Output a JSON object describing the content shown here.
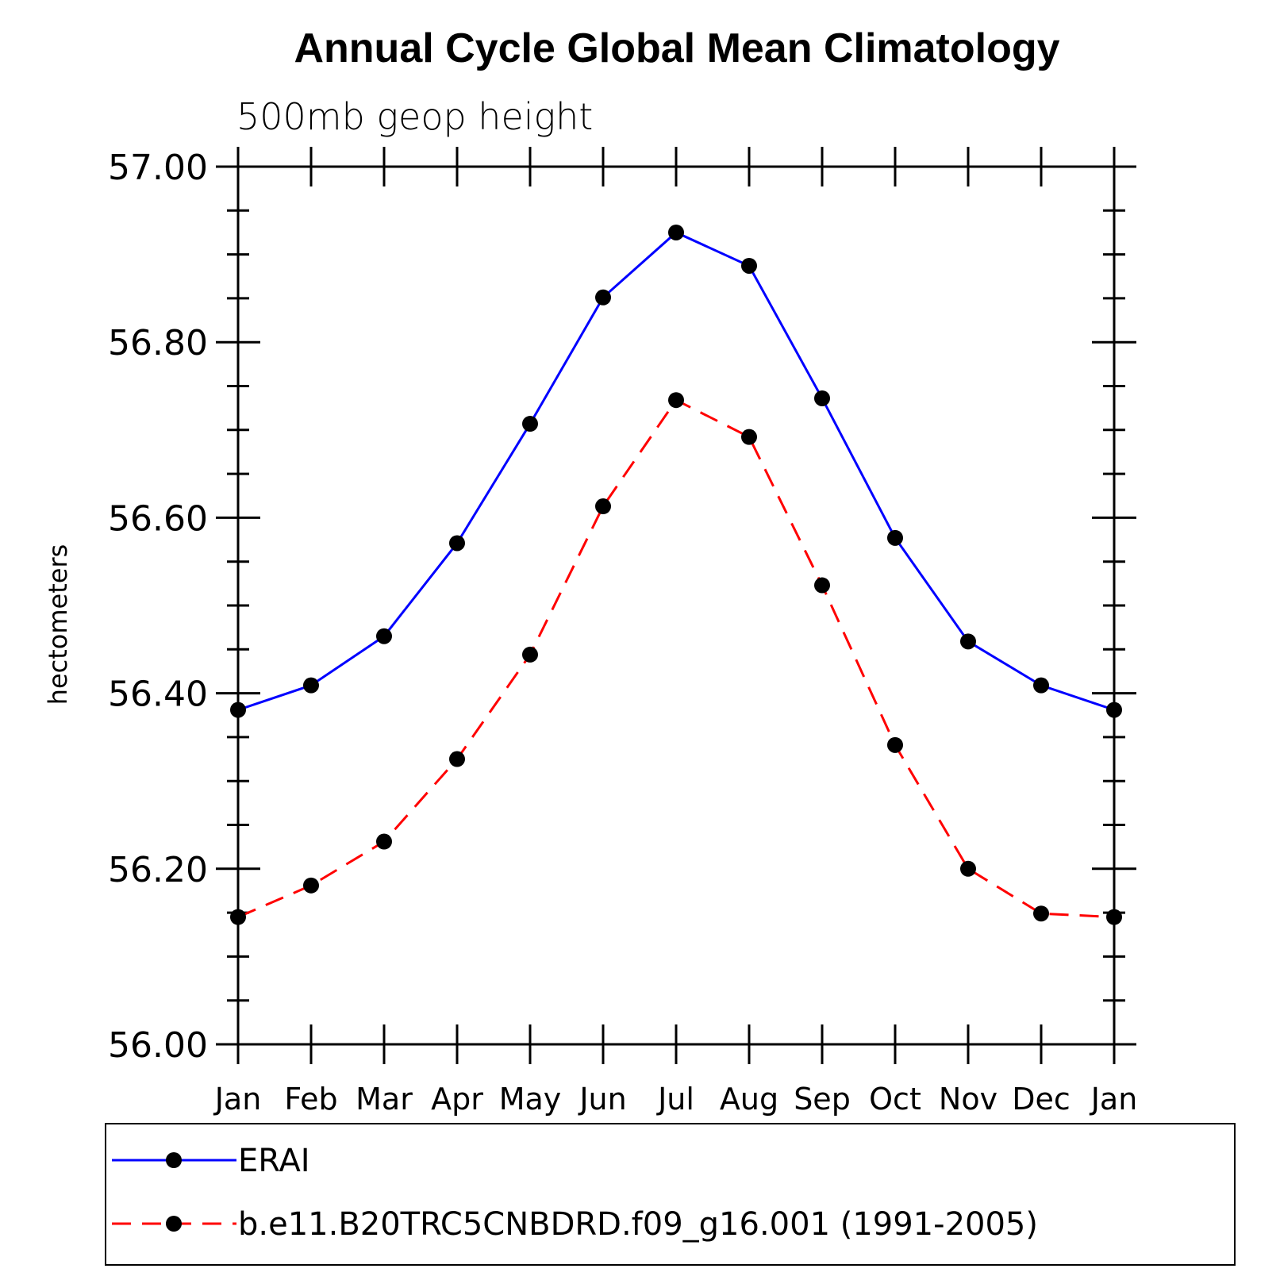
{
  "chart_data": {
    "type": "line",
    "title": "Annual Cycle Global Mean Climatology",
    "subtitle": "500mb geop height",
    "xlabel": "",
    "ylabel": "hectometers",
    "categories": [
      "Jan",
      "Feb",
      "Mar",
      "Apr",
      "May",
      "Jun",
      "Jul",
      "Aug",
      "Sep",
      "Oct",
      "Nov",
      "Dec",
      "Jan"
    ],
    "ylim": [
      56.0,
      57.0
    ],
    "yticks": [
      "56.00",
      "56.20",
      "56.40",
      "56.60",
      "56.80",
      "57.00"
    ],
    "grid": false,
    "legend_placement": "bottom",
    "series": [
      {
        "name": "ERAI",
        "color": "#0000ff",
        "dash": "solid",
        "marker_color": "#000000",
        "values": [
          56.381,
          56.409,
          56.465,
          56.571,
          56.707,
          56.851,
          56.925,
          56.887,
          56.736,
          56.577,
          56.459,
          56.409,
          56.381
        ]
      },
      {
        "name": "b.e11.B20TRC5CNBDRD.f09_g16.001 (1991-2005)",
        "color": "#ff0000",
        "dash": "dashed",
        "marker_color": "#000000",
        "values": [
          56.145,
          56.181,
          56.231,
          56.325,
          56.444,
          56.613,
          56.734,
          56.692,
          56.523,
          56.341,
          56.2,
          56.149,
          56.145
        ]
      }
    ]
  }
}
